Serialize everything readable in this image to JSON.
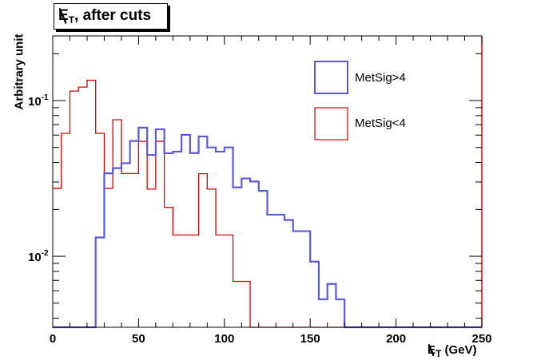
{
  "chart_data": {
    "type": "histogram",
    "title": "E̸T, after cuts",
    "title_parts": {
      "symbol": "E",
      "subscript": "T",
      "rest": ", after cuts"
    },
    "xlabel": "E̸T (GeV)",
    "xlabel_parts": {
      "symbol": "E",
      "subscript": "T",
      "rest": " (GeV)"
    },
    "ylabel": "Arbitrary unit",
    "xlim": [
      0,
      250
    ],
    "ylim": [
      0.0035,
      0.26
    ],
    "yscale": "log",
    "bin_width": 5,
    "x_ticks": [
      0,
      50,
      100,
      150,
      200,
      250
    ],
    "x_tick_labels": [
      "0",
      "50",
      "100",
      "150",
      "200",
      "250"
    ],
    "y_major_ticks": [
      0.01,
      0.1
    ],
    "y_tick_labels": [
      {
        "base": "10",
        "exp": "-2"
      },
      {
        "base": "10",
        "exp": "-1"
      }
    ],
    "grid": false,
    "legend_position": "top-right",
    "series": [
      {
        "name": "MetSig>4",
        "color": "#5a5adc",
        "bin_edges_start": 0,
        "values": [
          0,
          0,
          0,
          0,
          0,
          0.0132,
          0.0341,
          0.0368,
          0.0396,
          0.055,
          0.067,
          0.0447,
          0.0654,
          0.0459,
          0.047,
          0.0602,
          0.046,
          0.0588,
          0.05,
          0.047,
          0.05,
          0.0277,
          0.0316,
          0.0302,
          0.0263,
          0.0185,
          0.0185,
          0.0171,
          0.0145,
          0.0145,
          0.00924,
          0.00529,
          0.00664,
          0.00529,
          0,
          0,
          0,
          0,
          0,
          0,
          0,
          0,
          0,
          0,
          0,
          0,
          0,
          0,
          0,
          0
        ]
      },
      {
        "name": "MetSig<4",
        "color": "#e00000",
        "bin_edges_start": 0,
        "values": [
          0.0273,
          0.0616,
          0.115,
          0.122,
          0.135,
          0.0616,
          0.0273,
          0.0753,
          0.034,
          0.034,
          0.0547,
          0.027,
          0.0547,
          0.0206,
          0.0137,
          0.0137,
          0.0137,
          0.0339,
          0.027,
          0.0137,
          0.0137,
          0.0069,
          0.0069,
          0,
          0,
          0,
          0,
          0,
          0,
          0,
          0,
          0,
          0,
          0,
          0,
          0,
          0,
          0,
          0,
          0,
          0,
          0,
          0,
          0,
          0,
          0,
          0,
          0,
          0,
          0
        ]
      }
    ]
  }
}
